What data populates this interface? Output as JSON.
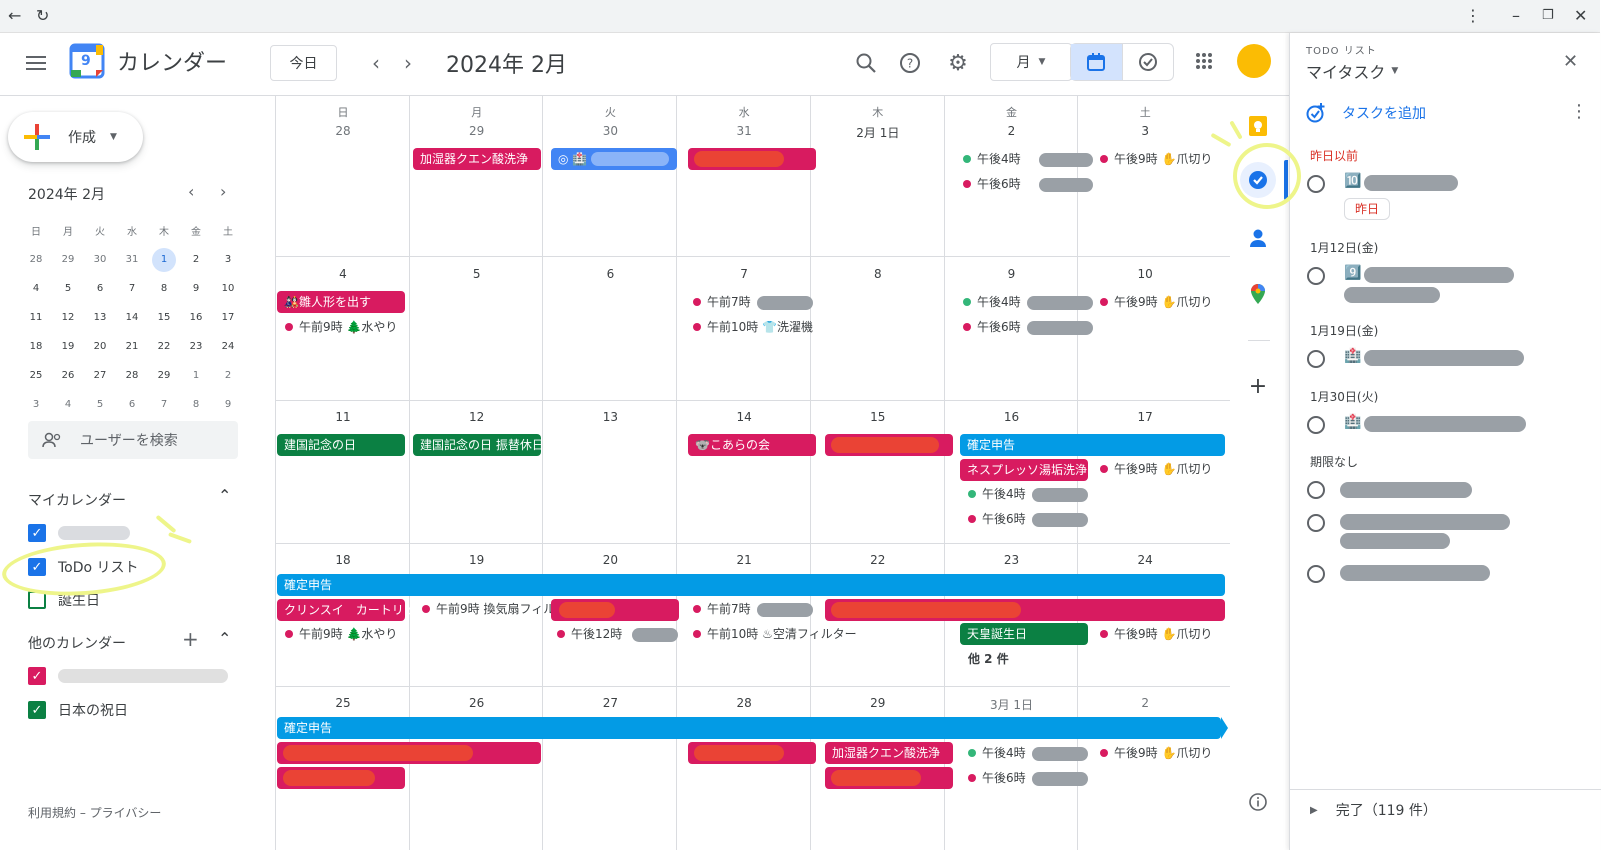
{
  "app": {
    "title": "カレンダー",
    "logo_num": "9"
  },
  "header": {
    "today": "今日",
    "month_title": "2024年 2月",
    "view": "月"
  },
  "sidebar": {
    "create": "作成",
    "mini_title": "2024年 2月",
    "weekdays": [
      "日",
      "月",
      "火",
      "水",
      "木",
      "金",
      "土"
    ],
    "weeks": [
      [
        "28",
        "29",
        "30",
        "31",
        "1",
        "2",
        "3"
      ],
      [
        "4",
        "5",
        "6",
        "7",
        "8",
        "9",
        "10"
      ],
      [
        "11",
        "12",
        "13",
        "14",
        "15",
        "16",
        "17"
      ],
      [
        "18",
        "19",
        "20",
        "21",
        "22",
        "23",
        "24"
      ],
      [
        "25",
        "26",
        "27",
        "28",
        "29",
        "1",
        "2"
      ],
      [
        "3",
        "4",
        "5",
        "6",
        "7",
        "8",
        "9"
      ]
    ],
    "search_users": "ユーザーを検索",
    "my_calendars": "マイカレンダー",
    "todo_list": "ToDo リスト",
    "birthdays": "誕生日",
    "other_calendars": "他のカレンダー",
    "holidays_jp": "日本の祝日",
    "footer": "利用規約 – プライバシー"
  },
  "grid": {
    "dow": [
      "日",
      "月",
      "火",
      "水",
      "木",
      "金",
      "土"
    ],
    "weeks": [
      [
        "28",
        "29",
        "30",
        "31",
        "2月 1日",
        "2",
        "3"
      ],
      [
        "4",
        "5",
        "6",
        "7",
        "8",
        "9",
        "10"
      ],
      [
        "11",
        "12",
        "13",
        "14",
        "15",
        "16",
        "17"
      ],
      [
        "18",
        "19",
        "20",
        "21",
        "22",
        "23",
        "24"
      ],
      [
        "25",
        "26",
        "27",
        "28",
        "29",
        "3月 1日",
        "2"
      ]
    ],
    "events": {
      "w1_humid": "加湿器クエン酸洗浄",
      "w1_task": "🏥",
      "w1_fri_a": "午後4時",
      "w1_fri_b": "午後6時",
      "w1_sat": "午後9時 ✋爪切り",
      "w2_hina": "🎎雛人形を出す",
      "w2_water": "午前9時 🌲水やり",
      "w2_wed_a": "午前7時",
      "w2_wed_b": "午前10時 👕洗濯機",
      "w2_fri_a": "午後4時",
      "w2_fri_b": "午後6時",
      "w2_sat": "午後9時 ✋爪切り",
      "w3_kenkoku": "建国記念の日",
      "w3_furikae": "建国記念の日 振替休日",
      "w3_koala": "🐨こあらの会",
      "w3_kakutei": "確定申告",
      "w3_nespresso": "ネスプレッソ湯垢洗浄",
      "w3_fri_a": "午後4時",
      "w3_fri_b": "午後6時",
      "w3_sat": "午後9時 ✋爪切り",
      "w4_kakutei": "確定申告",
      "w4_clean": "クリンスイ　カートリッジ",
      "w4_water": "午前9時 🌲水やり",
      "w4_fan": "午前9時 換気扇フィルター",
      "w4_tue": "午後12時",
      "w4_wed_a": "午前7時",
      "w4_wed_b": "午前10時 ♨空清フィルター",
      "w4_emperor": "天皇誕生日",
      "w4_more": "他 2 件",
      "w4_sat": "午後9時 ✋爪切り",
      "w5_kakutei": "確定申告",
      "w5_humid": "加湿器クエン酸洗浄",
      "w5_fri_a": "午後4時",
      "w5_fri_b": "午後6時",
      "w5_sat": "午後9時 ✋爪切り"
    }
  },
  "tasks": {
    "label": "TODO リスト",
    "title": "マイタスク",
    "add": "タスクを追加",
    "sec_overdue": "昨日以前",
    "overdue_chip": "昨日",
    "sec_jan12": "1月12日(金)",
    "sec_jan19": "1月19日(金)",
    "sec_jan30": "1月30日(火)",
    "sec_nodate": "期限なし",
    "emoji1": "🔟",
    "emoji2": "9️⃣",
    "emoji3": "🏥",
    "emoji4": "🏥",
    "completed": "完了（119 件）"
  },
  "colors": {
    "pink": "#d81b60",
    "blue": "#039be5",
    "green": "#0b8043",
    "accent": "#1a73e8",
    "today_bg": "#d2e3fc"
  }
}
